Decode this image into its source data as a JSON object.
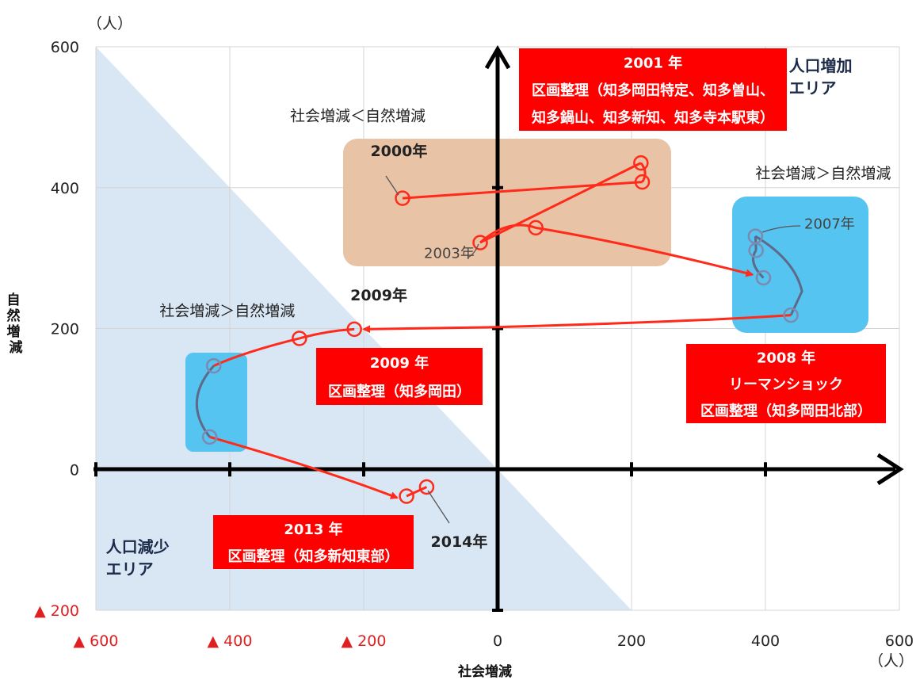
{
  "chart_data": {
    "type": "scatter",
    "xlabel": "社会増減",
    "ylabel": "自然増減",
    "x_unit": "（人）",
    "y_unit": "（人）",
    "xlim": [
      -600,
      600
    ],
    "ylim": [
      -200,
      600
    ],
    "x_ticks": [
      {
        "value": -600,
        "label": "▲ 600",
        "negative": true
      },
      {
        "value": -400,
        "label": "▲ 400",
        "negative": true
      },
      {
        "value": -200,
        "label": "▲ 200",
        "negative": true
      },
      {
        "value": 0,
        "label": "0",
        "negative": false
      },
      {
        "value": 200,
        "label": "200",
        "negative": false
      },
      {
        "value": 400,
        "label": "400",
        "negative": false
      },
      {
        "value": 600,
        "label": "600",
        "negative": false
      }
    ],
    "y_ticks": [
      {
        "value": 600,
        "label": "600",
        "negative": false
      },
      {
        "value": 400,
        "label": "400",
        "negative": false
      },
      {
        "value": 200,
        "label": "200",
        "negative": false
      },
      {
        "value": 0,
        "label": "0",
        "negative": false
      },
      {
        "value": -200,
        "label": "▲ 200",
        "negative": true
      }
    ],
    "grid": true,
    "points": [
      {
        "year": "2000",
        "x": -142,
        "y": 385
      },
      {
        "year": "2001",
        "x": 216,
        "y": 408
      },
      {
        "year": "2002",
        "x": 214,
        "y": 435
      },
      {
        "year": "2003",
        "x": -26,
        "y": 322
      },
      {
        "year": "2004",
        "x": 57,
        "y": 343
      },
      {
        "year": "2005",
        "x": 397,
        "y": 272
      },
      {
        "year": "2006",
        "x": 386,
        "y": 311
      },
      {
        "year": "2007",
        "x": 385,
        "y": 331
      },
      {
        "year": "2008",
        "x": 438,
        "y": 219
      },
      {
        "year": "2009",
        "x": -214,
        "y": 199
      },
      {
        "year": "2010",
        "x": -296,
        "y": 186
      },
      {
        "year": "2011",
        "x": -424,
        "y": 147
      },
      {
        "year": "2012",
        "x": -430,
        "y": 46
      },
      {
        "year": "2013",
        "x": -136,
        "y": -38
      },
      {
        "year": "2014",
        "x": -106,
        "y": -25
      }
    ],
    "year_labels": [
      {
        "text": "2000年",
        "style": "bold",
        "x": -190,
        "y": 445
      },
      {
        "text": "2003年",
        "style": "plain",
        "x": -110,
        "y": 300
      },
      {
        "text": "2007年",
        "style": "plain",
        "x": 458,
        "y": 342
      },
      {
        "text": "2009年",
        "style": "bold",
        "x": -220,
        "y": 240
      },
      {
        "text": "2014年",
        "style": "bold",
        "x": -100,
        "y": -110
      }
    ],
    "notes": [
      {
        "text": "社会増減＜自然増減",
        "x": -310,
        "y": 495
      },
      {
        "text": "社会増減＞自然増減",
        "x": 385,
        "y": 413
      },
      {
        "text": "社会増減＞自然増減",
        "x": -505,
        "y": 218
      }
    ],
    "area_labels": [
      {
        "lines": [
          "人口増加",
          "エリア"
        ],
        "x": 435,
        "y": 565,
        "anchor": "start"
      },
      {
        "lines": [
          "人口減少",
          "エリア"
        ],
        "x": -585,
        "y": -118,
        "anchor": "start"
      }
    ],
    "annotations": [
      {
        "lines": [
          "2001 年",
          "区画整理（知多岡田特定、知多曽山、",
          "知多鍋山、知多新知、知多寺本駅東）"
        ]
      },
      {
        "lines": [
          "2009 年",
          "区画整理（知多岡田）"
        ]
      },
      {
        "lines": [
          "2008 年",
          "リーマンショック",
          "区画整理（知多岡田北部）"
        ]
      },
      {
        "lines": [
          "2013 年",
          "区画整理（知多新知東部）"
        ]
      }
    ],
    "colors": {
      "trend_line": "#ff2a1a",
      "trend_line_dark": "#5d6a8a",
      "decrease_area": "#d9e6f4",
      "highlight_orange": "#e9c3a6",
      "highlight_blue": "#55c4f0",
      "annotation_box": "#ff0000",
      "axis": "#000000",
      "negative_label": "#e02020"
    }
  }
}
